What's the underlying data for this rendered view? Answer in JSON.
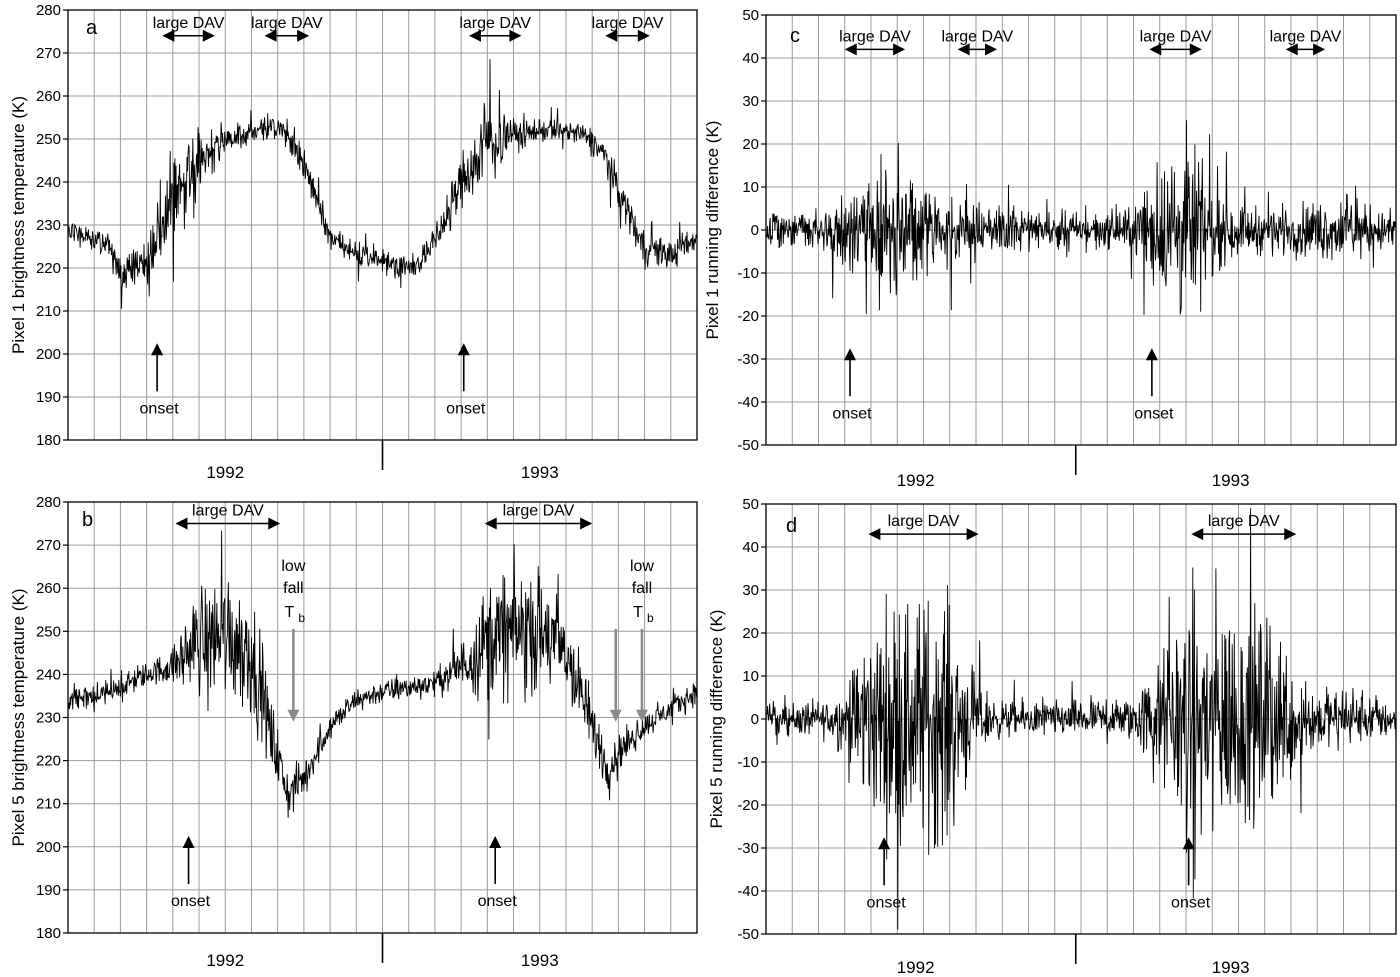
{
  "chart_data": [
    {
      "panel": "a",
      "type": "line",
      "ylabel": "Pixel 1 brightness temperature (K)",
      "ylim": [
        180,
        280
      ],
      "yticks": [
        180,
        190,
        200,
        210,
        220,
        230,
        240,
        250,
        260,
        270,
        280
      ],
      "xlim": [
        0,
        24
      ],
      "year_labels": [
        {
          "text": "1992",
          "x": 6
        },
        {
          "text": "1993",
          "x": 18
        }
      ],
      "year_divider_x": 12,
      "grid": true,
      "series": [
        {
          "values_at_month": [
            [
              0,
              229
            ],
            [
              1,
              226
            ],
            [
              1.5,
              226
            ],
            [
              2,
              219
            ],
            [
              3,
              222
            ],
            [
              3.5,
              228
            ],
            [
              4,
              236
            ],
            [
              5,
              246
            ],
            [
              6,
              250
            ],
            [
              7,
              252
            ],
            [
              8,
              253
            ],
            [
              8.5,
              250
            ],
            [
              9,
              244
            ],
            [
              9.5,
              236
            ],
            [
              10,
              227
            ],
            [
              11,
              223
            ],
            [
              12,
              222
            ],
            [
              13,
              220
            ],
            [
              13.5,
              222
            ],
            [
              14,
              226
            ],
            [
              15,
              240
            ],
            [
              15.5,
              244
            ],
            [
              16,
              250
            ],
            [
              17,
              251
            ],
            [
              18,
              252
            ],
            [
              19,
              252
            ],
            [
              20,
              250
            ],
            [
              20.5,
              246
            ],
            [
              21,
              238
            ],
            [
              22,
              225
            ],
            [
              23,
              223
            ],
            [
              24,
              227
            ]
          ],
          "noise_amplitude_at_month": [
            [
              0,
              3
            ],
            [
              1,
              3
            ],
            [
              2,
              6
            ],
            [
              3,
              8
            ],
            [
              4,
              14
            ],
            [
              5,
              12
            ],
            [
              6,
              6
            ],
            [
              7,
              4
            ],
            [
              8,
              4
            ],
            [
              9,
              6
            ],
            [
              10,
              5
            ],
            [
              11,
              4
            ],
            [
              12,
              4
            ],
            [
              13,
              4
            ],
            [
              14,
              5
            ],
            [
              15,
              10
            ],
            [
              16,
              14
            ],
            [
              17,
              6
            ],
            [
              18,
              4
            ],
            [
              19,
              4
            ],
            [
              20,
              4
            ],
            [
              21,
              6
            ],
            [
              22,
              6
            ],
            [
              23,
              5
            ],
            [
              24,
              4
            ]
          ]
        }
      ],
      "annotations": [
        {
          "text": "large DAV",
          "x_from": 3.6,
          "x_to": 5.6,
          "y": 274
        },
        {
          "text": "large DAV",
          "x_from": 7.5,
          "x_to": 9.2,
          "y": 274
        },
        {
          "text": "large DAV",
          "x_from": 15.3,
          "x_to": 17.3,
          "y": 274
        },
        {
          "text": "large DAV",
          "x_from": 20.5,
          "x_to": 22.2,
          "y": 274
        }
      ],
      "onset": [
        {
          "text": "onset",
          "x": 3.4
        },
        {
          "text": "onset",
          "x": 15.1
        }
      ]
    },
    {
      "panel": "b",
      "type": "line",
      "ylabel": "Pixel 5 brightness temperature (K)",
      "ylim": [
        180,
        280
      ],
      "yticks": [
        180,
        190,
        200,
        210,
        220,
        230,
        240,
        250,
        260,
        270,
        280
      ],
      "xlim": [
        0,
        24
      ],
      "year_labels": [
        {
          "text": "1992",
          "x": 6
        },
        {
          "text": "1993",
          "x": 18
        }
      ],
      "year_divider_x": 12,
      "grid": true,
      "series": [
        {
          "values_at_month": [
            [
              0,
              234
            ],
            [
              1,
              235
            ],
            [
              2,
              237
            ],
            [
              3,
              240
            ],
            [
              4,
              242
            ],
            [
              5,
              248
            ],
            [
              6,
              250
            ],
            [
              7,
              245
            ],
            [
              7.8,
              225
            ],
            [
              8.4,
              212
            ],
            [
              9,
              216
            ],
            [
              10,
              228
            ],
            [
              11,
              234
            ],
            [
              12,
              236
            ],
            [
              13,
              237
            ],
            [
              14,
              238
            ],
            [
              15,
              242
            ],
            [
              16,
              248
            ],
            [
              17,
              250
            ],
            [
              18,
              250
            ],
            [
              19,
              245
            ],
            [
              20,
              228
            ],
            [
              20.6,
              218
            ],
            [
              21,
              222
            ],
            [
              22,
              228
            ],
            [
              23,
              232
            ],
            [
              24,
              236
            ]
          ],
          "noise_amplitude_at_month": [
            [
              0,
              4
            ],
            [
              1,
              4
            ],
            [
              2,
              4
            ],
            [
              3,
              4
            ],
            [
              4,
              6
            ],
            [
              5,
              18
            ],
            [
              6,
              22
            ],
            [
              7,
              20
            ],
            [
              8,
              10
            ],
            [
              9,
              6
            ],
            [
              10,
              4
            ],
            [
              11,
              4
            ],
            [
              12,
              4
            ],
            [
              13,
              4
            ],
            [
              14,
              4
            ],
            [
              15,
              8
            ],
            [
              16,
              20
            ],
            [
              17,
              22
            ],
            [
              18,
              20
            ],
            [
              19,
              16
            ],
            [
              20,
              10
            ],
            [
              21,
              6
            ],
            [
              22,
              4
            ],
            [
              23,
              4
            ],
            [
              24,
              4
            ]
          ]
        }
      ],
      "annotations": [
        {
          "text": "large DAV",
          "x_from": 4.1,
          "x_to": 8.1,
          "y": 275
        }
      ],
      "annotations_right": [
        {
          "text": "large DAV",
          "x_from": 15.9,
          "x_to": 20.0,
          "y": 275
        }
      ],
      "low_fall": [
        {
          "lines": [
            "low",
            "fall",
            "T",
            "b"
          ],
          "x": 8.6,
          "arrows_x": [
            8.6
          ]
        },
        {
          "lines": [
            "low",
            "fall",
            "T",
            "b"
          ],
          "x": 21.9,
          "arrows_x": [
            20.9,
            21.9
          ]
        }
      ],
      "onset": [
        {
          "text": "onset",
          "x": 4.6
        },
        {
          "text": "onset",
          "x": 16.3
        }
      ]
    },
    {
      "panel": "c",
      "type": "line",
      "ylabel": "Pixel 1 running difference (K)",
      "ylim": [
        -50,
        50
      ],
      "yticks": [
        -50,
        -40,
        -30,
        -20,
        -10,
        0,
        10,
        20,
        30,
        40,
        50
      ],
      "xlim": [
        0,
        24
      ],
      "year_labels": [
        {
          "text": "1992",
          "x": 5.7
        },
        {
          "text": "1993",
          "x": 17.7
        }
      ],
      "year_divider_x": 11.8,
      "grid": true,
      "series": [
        {
          "values_at_month": [
            [
              0,
              0
            ],
            [
              24,
              0
            ]
          ],
          "noise_amplitude_at_month": [
            [
              0,
              6
            ],
            [
              1,
              6
            ],
            [
              2,
              8
            ],
            [
              3,
              12
            ],
            [
              4,
              18
            ],
            [
              5,
              22
            ],
            [
              6,
              12
            ],
            [
              7,
              10
            ],
            [
              8,
              10
            ],
            [
              9,
              8
            ],
            [
              10,
              6
            ],
            [
              11,
              6
            ],
            [
              12,
              6
            ],
            [
              13,
              6
            ],
            [
              14,
              8
            ],
            [
              15,
              22
            ],
            [
              16,
              32
            ],
            [
              17,
              14
            ],
            [
              18,
              8
            ],
            [
              19,
              8
            ],
            [
              20,
              8
            ],
            [
              21,
              10
            ],
            [
              22,
              10
            ],
            [
              23,
              8
            ],
            [
              24,
              6
            ]
          ]
        }
      ],
      "annotations": [
        {
          "text": "large DAV",
          "x_from": 3.0,
          "x_to": 5.3,
          "y": 42
        },
        {
          "text": "large DAV",
          "x_from": 7.3,
          "x_to": 8.8,
          "y": 42
        },
        {
          "text": "large DAV",
          "x_from": 14.6,
          "x_to": 16.6,
          "y": 42
        },
        {
          "text": "large DAV",
          "x_from": 19.8,
          "x_to": 21.3,
          "y": 42
        }
      ],
      "onset": [
        {
          "text": "onset",
          "x": 3.2
        },
        {
          "text": "onset",
          "x": 14.7
        }
      ]
    },
    {
      "panel": "d",
      "type": "line",
      "ylabel": "Pixel 5 running difference (K)",
      "ylim": [
        -50,
        50
      ],
      "yticks": [
        -50,
        -40,
        -30,
        -20,
        -10,
        0,
        10,
        20,
        30,
        40,
        50
      ],
      "xlim": [
        0,
        24
      ],
      "year_labels": [
        {
          "text": "1992",
          "x": 5.7
        },
        {
          "text": "1993",
          "x": 17.7
        }
      ],
      "year_divider_x": 11.8,
      "grid": true,
      "series": [
        {
          "values_at_month": [
            [
              0,
              0
            ],
            [
              24,
              0
            ]
          ],
          "noise_amplitude_at_month": [
            [
              0,
              6
            ],
            [
              1,
              6
            ],
            [
              2,
              6
            ],
            [
              3,
              10
            ],
            [
              4,
              32
            ],
            [
              5,
              42
            ],
            [
              6,
              42
            ],
            [
              7,
              40
            ],
            [
              8,
              12
            ],
            [
              9,
              6
            ],
            [
              10,
              6
            ],
            [
              11,
              6
            ],
            [
              12,
              6
            ],
            [
              13,
              6
            ],
            [
              14,
              8
            ],
            [
              15,
              20
            ],
            [
              16,
              40
            ],
            [
              17,
              42
            ],
            [
              18,
              38
            ],
            [
              19,
              34
            ],
            [
              20,
              22
            ],
            [
              21,
              10
            ],
            [
              22,
              8
            ],
            [
              23,
              8
            ],
            [
              24,
              6
            ]
          ]
        }
      ],
      "annotations": [
        {
          "text": "large DAV",
          "x_from": 3.9,
          "x_to": 8.1,
          "y": 43
        },
        {
          "text": "large DAV",
          "x_from": 16.2,
          "x_to": 20.2,
          "y": 43
        }
      ],
      "onset": [
        {
          "text": "onset",
          "x": 4.5
        },
        {
          "text": "onset",
          "x": 16.1
        }
      ]
    }
  ]
}
